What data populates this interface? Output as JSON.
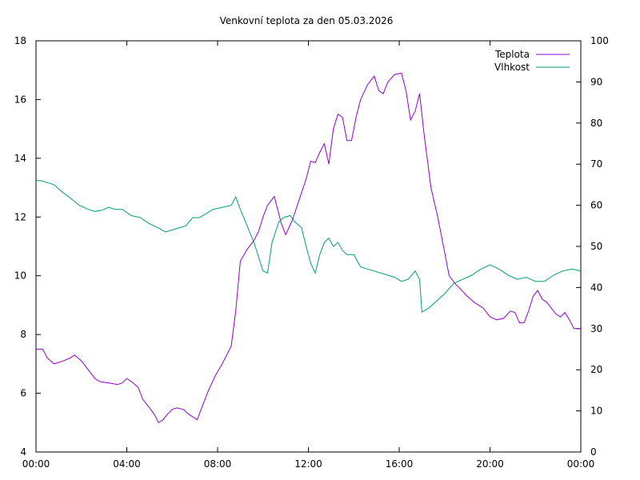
{
  "chart_data": {
    "type": "line",
    "title": "Venkovní teplota za den 05.03.2026",
    "xlabel": "",
    "ylabel": "",
    "y2label": "",
    "x_ticks": [
      "00:00",
      "04:00",
      "08:00",
      "12:00",
      "16:00",
      "20:00",
      "00:00"
    ],
    "x_range_hours": [
      0,
      24
    ],
    "ylim": [
      4,
      18
    ],
    "y_ticks": [
      4,
      6,
      8,
      10,
      12,
      14,
      16,
      18
    ],
    "y2lim": [
      0,
      100
    ],
    "y2_ticks": [
      0,
      10,
      20,
      30,
      40,
      50,
      60,
      70,
      80,
      90,
      100
    ],
    "grid": false,
    "legend_position": "top-right",
    "series": [
      {
        "name": "Teplota",
        "axis": "left",
        "color": "#9400d3",
        "points": [
          [
            0,
            7.5
          ],
          [
            0.3,
            7.5
          ],
          [
            0.5,
            7.2
          ],
          [
            0.8,
            7.0
          ],
          [
            1.2,
            7.1
          ],
          [
            1.5,
            7.2
          ],
          [
            1.7,
            7.3
          ],
          [
            2.0,
            7.1
          ],
          [
            2.3,
            6.8
          ],
          [
            2.6,
            6.5
          ],
          [
            2.8,
            6.4
          ],
          [
            3.2,
            6.35
          ],
          [
            3.6,
            6.3
          ],
          [
            3.8,
            6.35
          ],
          [
            4.0,
            6.5
          ],
          [
            4.2,
            6.4
          ],
          [
            4.5,
            6.2
          ],
          [
            4.7,
            5.8
          ],
          [
            5.0,
            5.5
          ],
          [
            5.2,
            5.3
          ],
          [
            5.4,
            5.0
          ],
          [
            5.6,
            5.1
          ],
          [
            5.8,
            5.3
          ],
          [
            6.0,
            5.45
          ],
          [
            6.2,
            5.5
          ],
          [
            6.5,
            5.45
          ],
          [
            6.7,
            5.3
          ],
          [
            6.9,
            5.2
          ],
          [
            7.1,
            5.1
          ],
          [
            7.3,
            5.5
          ],
          [
            7.6,
            6.1
          ],
          [
            7.9,
            6.6
          ],
          [
            8.2,
            7.0
          ],
          [
            8.4,
            7.3
          ],
          [
            8.6,
            7.6
          ],
          [
            8.8,
            8.8
          ],
          [
            9.0,
            10.5
          ],
          [
            9.3,
            10.9
          ],
          [
            9.6,
            11.2
          ],
          [
            9.8,
            11.5
          ],
          [
            10.0,
            12.0
          ],
          [
            10.2,
            12.4
          ],
          [
            10.5,
            12.7
          ],
          [
            10.8,
            11.8
          ],
          [
            11.0,
            11.4
          ],
          [
            11.3,
            11.9
          ],
          [
            11.6,
            12.6
          ],
          [
            11.9,
            13.3
          ],
          [
            12.1,
            13.9
          ],
          [
            12.3,
            13.85
          ],
          [
            12.5,
            14.2
          ],
          [
            12.7,
            14.5
          ],
          [
            12.9,
            13.8
          ],
          [
            13.1,
            15.0
          ],
          [
            13.3,
            15.5
          ],
          [
            13.5,
            15.4
          ],
          [
            13.7,
            14.6
          ],
          [
            13.9,
            14.6
          ],
          [
            14.1,
            15.4
          ],
          [
            14.3,
            16.0
          ],
          [
            14.6,
            16.5
          ],
          [
            14.9,
            16.8
          ],
          [
            15.1,
            16.3
          ],
          [
            15.3,
            16.2
          ],
          [
            15.5,
            16.6
          ],
          [
            15.8,
            16.85
          ],
          [
            16.1,
            16.9
          ],
          [
            16.3,
            16.3
          ],
          [
            16.5,
            15.3
          ],
          [
            16.7,
            15.6
          ],
          [
            16.9,
            16.2
          ],
          [
            17.1,
            14.8
          ],
          [
            17.4,
            13.0
          ],
          [
            17.7,
            12.0
          ],
          [
            18.0,
            10.8
          ],
          [
            18.2,
            10.0
          ],
          [
            18.5,
            9.7
          ],
          [
            18.7,
            9.55
          ],
          [
            19.0,
            9.3
          ],
          [
            19.3,
            9.1
          ],
          [
            19.7,
            8.9
          ],
          [
            20.0,
            8.6
          ],
          [
            20.3,
            8.5
          ],
          [
            20.6,
            8.55
          ],
          [
            20.9,
            8.8
          ],
          [
            21.1,
            8.75
          ],
          [
            21.3,
            8.4
          ],
          [
            21.5,
            8.4
          ],
          [
            21.7,
            8.8
          ],
          [
            21.9,
            9.3
          ],
          [
            22.1,
            9.5
          ],
          [
            22.3,
            9.2
          ],
          [
            22.5,
            9.1
          ],
          [
            22.7,
            8.9
          ],
          [
            22.9,
            8.7
          ],
          [
            23.1,
            8.6
          ],
          [
            23.3,
            8.75
          ],
          [
            23.5,
            8.5
          ],
          [
            23.7,
            8.2
          ],
          [
            24.0,
            8.2
          ]
        ]
      },
      {
        "name": "Vlhkost",
        "axis": "right",
        "color": "#009e73",
        "points": [
          [
            0,
            66
          ],
          [
            0.2,
            66
          ],
          [
            0.5,
            65.5
          ],
          [
            0.8,
            65
          ],
          [
            1.1,
            63.5
          ],
          [
            1.5,
            61.8
          ],
          [
            1.9,
            60
          ],
          [
            2.3,
            59
          ],
          [
            2.6,
            58.5
          ],
          [
            2.9,
            58.8
          ],
          [
            3.2,
            59.5
          ],
          [
            3.5,
            59
          ],
          [
            3.8,
            59
          ],
          [
            4.2,
            57.5
          ],
          [
            4.6,
            57
          ],
          [
            5.0,
            55.5
          ],
          [
            5.4,
            54.5
          ],
          [
            5.7,
            53.5
          ],
          [
            6.0,
            54
          ],
          [
            6.3,
            54.5
          ],
          [
            6.6,
            55
          ],
          [
            6.9,
            57
          ],
          [
            7.2,
            57
          ],
          [
            7.5,
            58
          ],
          [
            7.8,
            59
          ],
          [
            8.2,
            59.5
          ],
          [
            8.6,
            60
          ],
          [
            8.8,
            62
          ],
          [
            9.0,
            59
          ],
          [
            9.3,
            55
          ],
          [
            9.6,
            51
          ],
          [
            9.8,
            47.5
          ],
          [
            10.0,
            44
          ],
          [
            10.2,
            43.5
          ],
          [
            10.4,
            51
          ],
          [
            10.7,
            56
          ],
          [
            10.9,
            57
          ],
          [
            11.2,
            57.5
          ],
          [
            11.4,
            56
          ],
          [
            11.7,
            54.5
          ],
          [
            11.9,
            50
          ],
          [
            12.1,
            46
          ],
          [
            12.3,
            43.5
          ],
          [
            12.5,
            48
          ],
          [
            12.7,
            51
          ],
          [
            12.9,
            52
          ],
          [
            13.1,
            50
          ],
          [
            13.3,
            51
          ],
          [
            13.5,
            49
          ],
          [
            13.7,
            48
          ],
          [
            14.0,
            48
          ],
          [
            14.3,
            45
          ],
          [
            14.6,
            44.5
          ],
          [
            14.9,
            44
          ],
          [
            15.2,
            43.5
          ],
          [
            15.5,
            43
          ],
          [
            15.8,
            42.5
          ],
          [
            16.1,
            41.5
          ],
          [
            16.4,
            42
          ],
          [
            16.7,
            44
          ],
          [
            16.9,
            42
          ],
          [
            17.0,
            34
          ],
          [
            17.3,
            35
          ],
          [
            17.6,
            36.5
          ],
          [
            18.0,
            38.5
          ],
          [
            18.4,
            41
          ],
          [
            18.8,
            42
          ],
          [
            19.2,
            43
          ],
          [
            19.6,
            44.5
          ],
          [
            20.0,
            45.5
          ],
          [
            20.4,
            44.5
          ],
          [
            20.8,
            43
          ],
          [
            21.2,
            42
          ],
          [
            21.6,
            42.5
          ],
          [
            22.0,
            41.5
          ],
          [
            22.4,
            41.5
          ],
          [
            22.8,
            43
          ],
          [
            23.2,
            44
          ],
          [
            23.6,
            44.5
          ],
          [
            24.0,
            44
          ]
        ]
      }
    ]
  }
}
